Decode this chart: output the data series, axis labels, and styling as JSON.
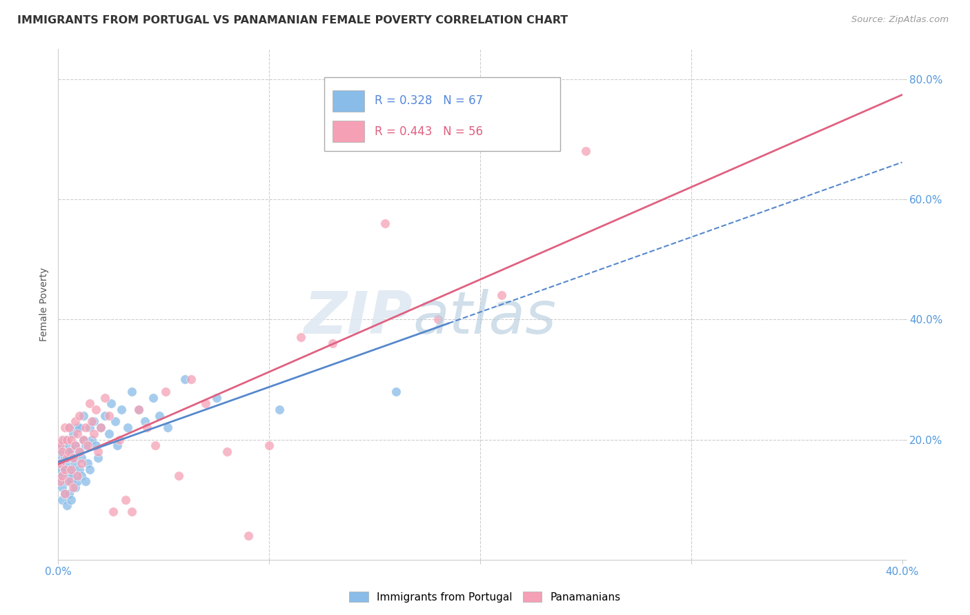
{
  "title": "IMMIGRANTS FROM PORTUGAL VS PANAMANIAN FEMALE POVERTY CORRELATION CHART",
  "source": "Source: ZipAtlas.com",
  "ylabel": "Female Poverty",
  "legend1_r": "0.328",
  "legend1_n": "67",
  "legend2_r": "0.443",
  "legend2_n": "56",
  "blue_color": "#89bce8",
  "pink_color": "#f5a0b5",
  "trendline_blue": "#5588cc",
  "trendline_pink": "#e06080",
  "xlim": [
    0.0,
    0.4
  ],
  "ylim": [
    0.0,
    0.85
  ],
  "blue_points_x": [
    0.001,
    0.001,
    0.001,
    0.002,
    0.002,
    0.002,
    0.002,
    0.002,
    0.003,
    0.003,
    0.003,
    0.003,
    0.004,
    0.004,
    0.004,
    0.004,
    0.005,
    0.005,
    0.005,
    0.005,
    0.005,
    0.006,
    0.006,
    0.006,
    0.006,
    0.007,
    0.007,
    0.007,
    0.008,
    0.008,
    0.008,
    0.009,
    0.009,
    0.01,
    0.01,
    0.01,
    0.011,
    0.011,
    0.012,
    0.012,
    0.013,
    0.013,
    0.014,
    0.015,
    0.015,
    0.016,
    0.017,
    0.018,
    0.019,
    0.02,
    0.022,
    0.024,
    0.025,
    0.027,
    0.028,
    0.03,
    0.033,
    0.035,
    0.038,
    0.041,
    0.045,
    0.048,
    0.052,
    0.06,
    0.075,
    0.105,
    0.16
  ],
  "blue_points_y": [
    0.13,
    0.18,
    0.15,
    0.14,
    0.17,
    0.12,
    0.19,
    0.1,
    0.15,
    0.17,
    0.11,
    0.2,
    0.13,
    0.16,
    0.18,
    0.09,
    0.14,
    0.17,
    0.19,
    0.11,
    0.22,
    0.13,
    0.15,
    0.18,
    0.1,
    0.14,
    0.17,
    0.21,
    0.12,
    0.16,
    0.19,
    0.13,
    0.22,
    0.15,
    0.18,
    0.22,
    0.14,
    0.17,
    0.2,
    0.24,
    0.13,
    0.19,
    0.16,
    0.22,
    0.15,
    0.2,
    0.23,
    0.19,
    0.17,
    0.22,
    0.24,
    0.21,
    0.26,
    0.23,
    0.19,
    0.25,
    0.22,
    0.28,
    0.25,
    0.23,
    0.27,
    0.24,
    0.22,
    0.3,
    0.27,
    0.25,
    0.28
  ],
  "pink_points_x": [
    0.001,
    0.001,
    0.001,
    0.002,
    0.002,
    0.002,
    0.003,
    0.003,
    0.003,
    0.004,
    0.004,
    0.005,
    0.005,
    0.005,
    0.006,
    0.006,
    0.007,
    0.007,
    0.008,
    0.008,
    0.009,
    0.009,
    0.01,
    0.01,
    0.011,
    0.012,
    0.013,
    0.014,
    0.015,
    0.016,
    0.017,
    0.018,
    0.019,
    0.02,
    0.022,
    0.024,
    0.026,
    0.029,
    0.032,
    0.035,
    0.038,
    0.042,
    0.046,
    0.051,
    0.057,
    0.063,
    0.07,
    0.08,
    0.09,
    0.1,
    0.115,
    0.13,
    0.155,
    0.18,
    0.21,
    0.25
  ],
  "pink_points_y": [
    0.16,
    0.19,
    0.13,
    0.14,
    0.18,
    0.2,
    0.15,
    0.22,
    0.11,
    0.17,
    0.2,
    0.13,
    0.18,
    0.22,
    0.15,
    0.2,
    0.12,
    0.17,
    0.19,
    0.23,
    0.14,
    0.21,
    0.18,
    0.24,
    0.16,
    0.2,
    0.22,
    0.19,
    0.26,
    0.23,
    0.21,
    0.25,
    0.18,
    0.22,
    0.27,
    0.24,
    0.08,
    0.2,
    0.1,
    0.08,
    0.25,
    0.22,
    0.19,
    0.28,
    0.14,
    0.3,
    0.26,
    0.18,
    0.04,
    0.19,
    0.37,
    0.36,
    0.56,
    0.4,
    0.44,
    0.68
  ]
}
